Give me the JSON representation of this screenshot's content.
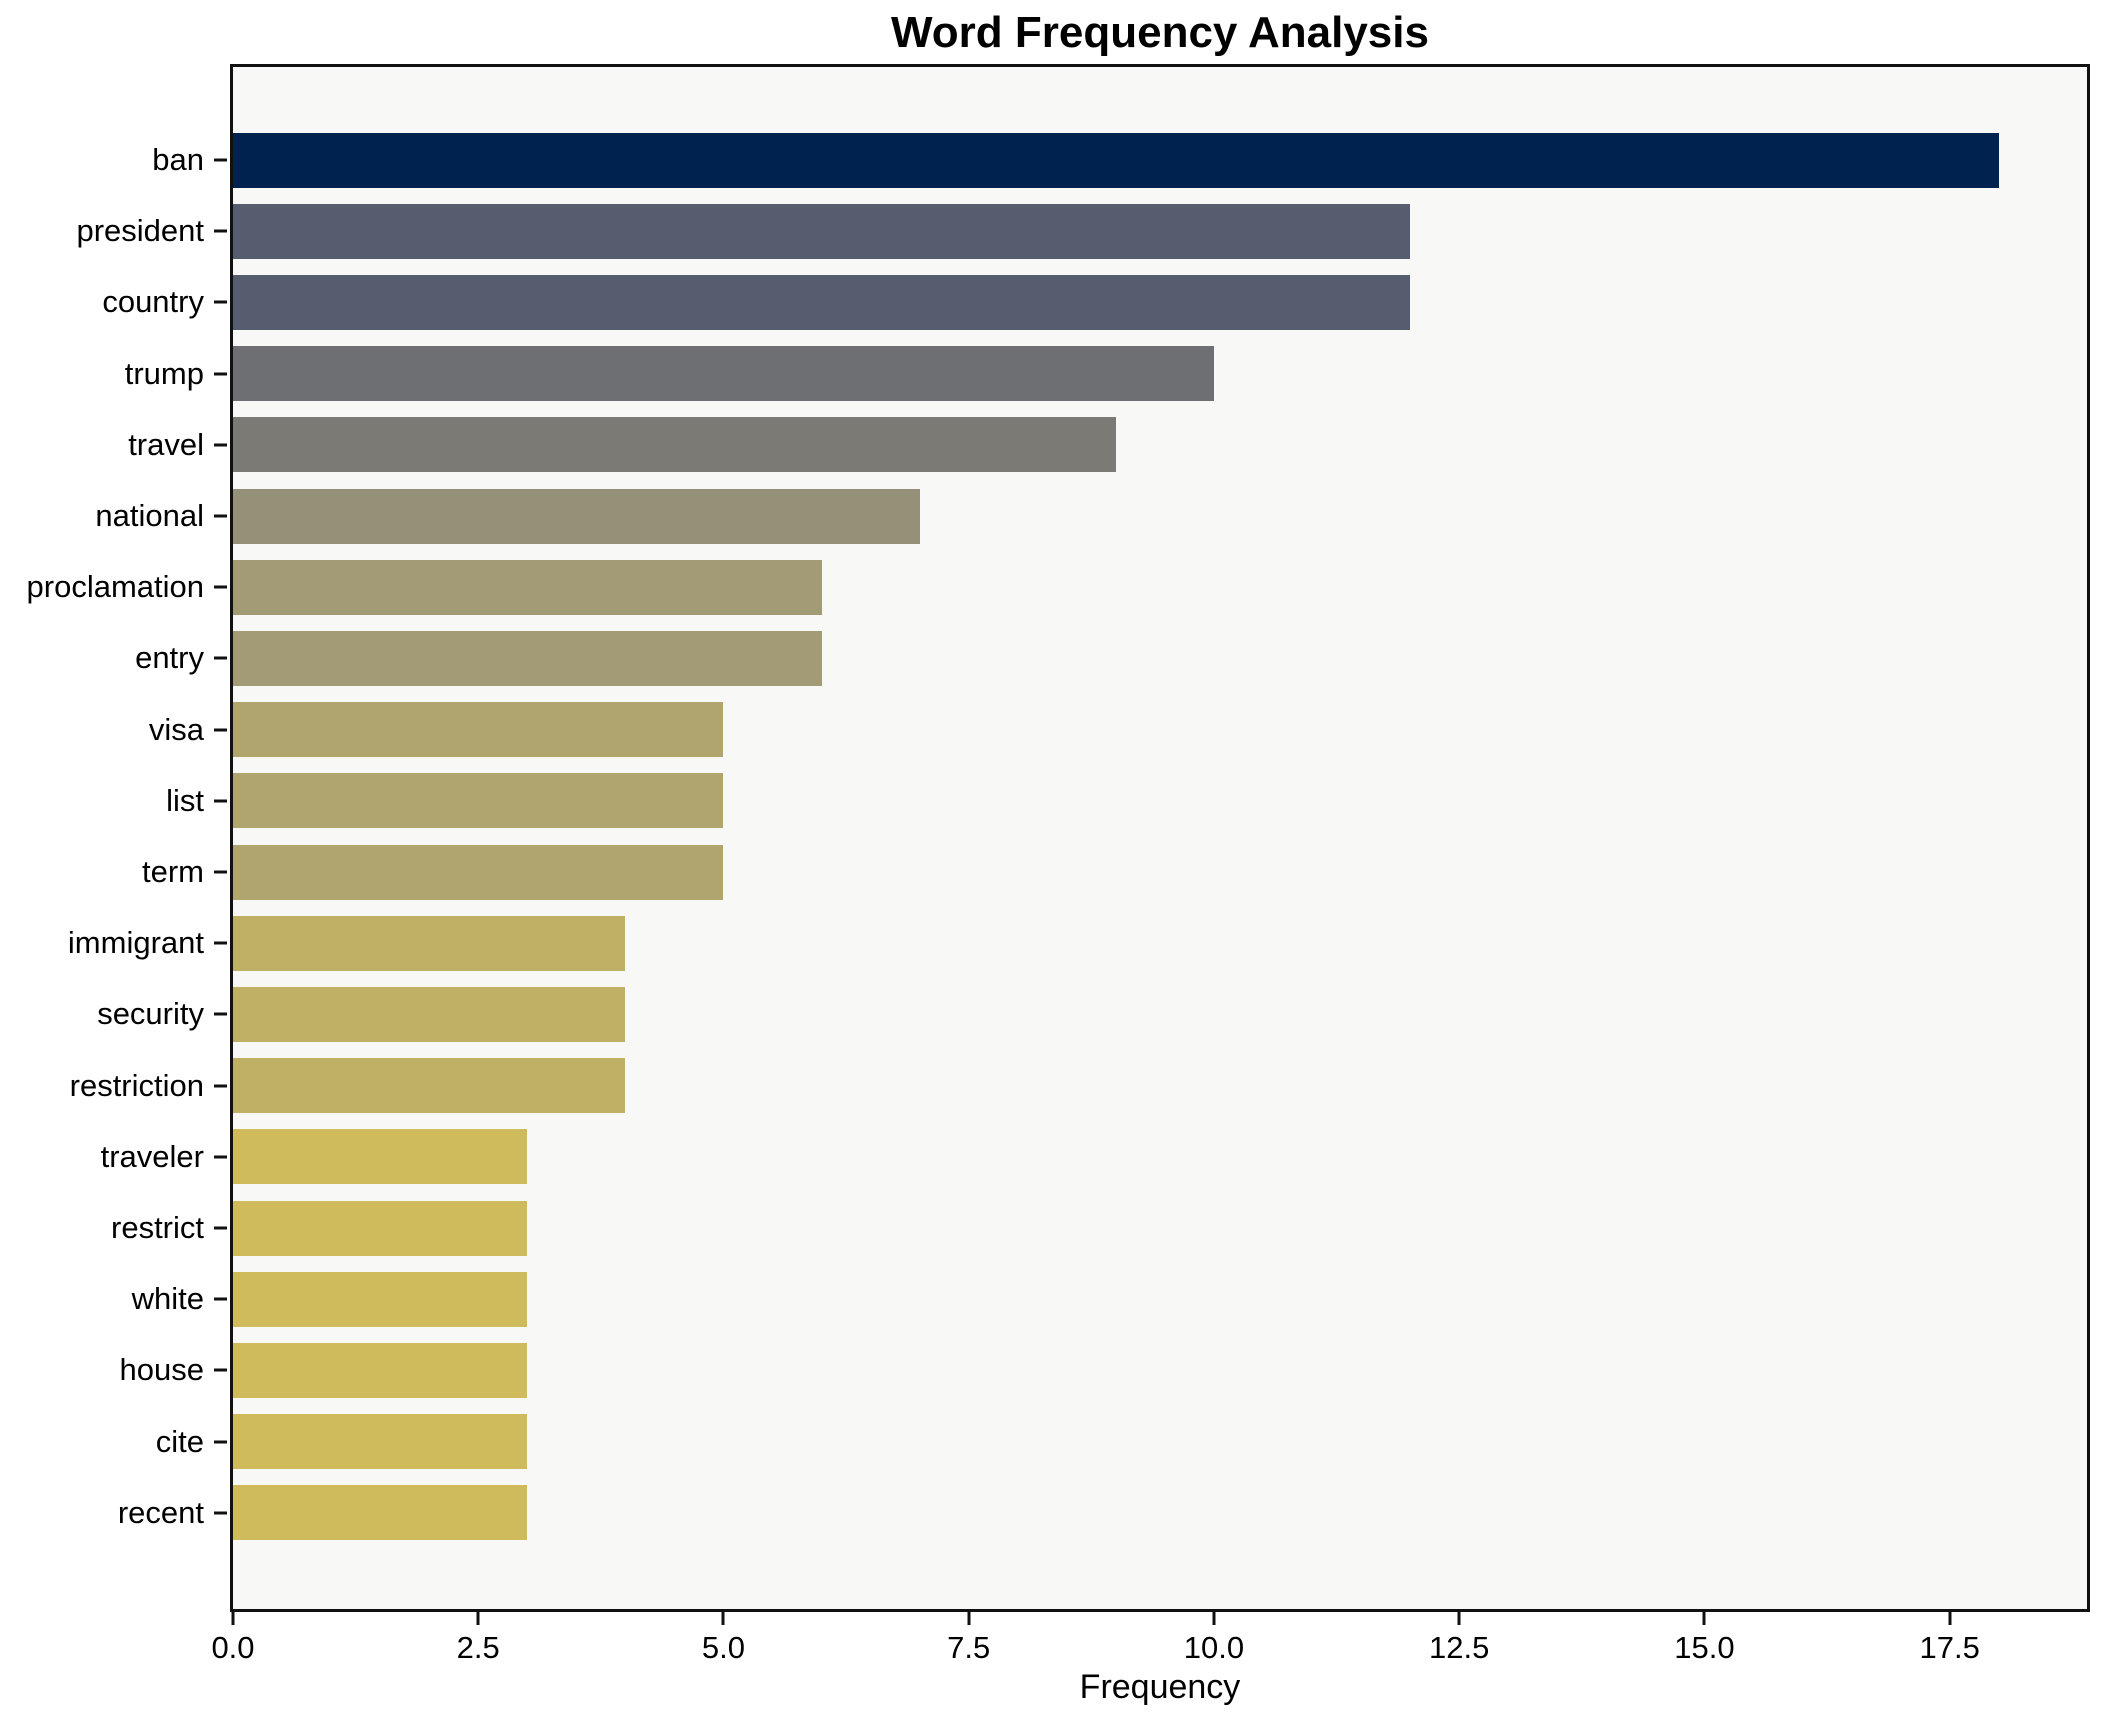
{
  "chart_data": {
    "type": "bar",
    "orientation": "horizontal",
    "title": "Word Frequency Analysis",
    "xlabel": "Frequency",
    "ylabel": "",
    "categories": [
      "ban",
      "president",
      "country",
      "trump",
      "travel",
      "national",
      "proclamation",
      "entry",
      "visa",
      "list",
      "term",
      "immigrant",
      "security",
      "restriction",
      "traveler",
      "restrict",
      "white",
      "house",
      "cite",
      "recent"
    ],
    "values": [
      18,
      12,
      12,
      10,
      9,
      7,
      6,
      6,
      5,
      5,
      5,
      4,
      4,
      4,
      3,
      3,
      3,
      3,
      3,
      3
    ],
    "bar_colors": [
      "#00224e",
      "#565d6e",
      "#565d6e",
      "#6e6f72",
      "#7b7a75",
      "#959078",
      "#a39b76",
      "#a39b76",
      "#b0a56f",
      "#b0a56f",
      "#b0a56f",
      "#c0b066",
      "#c0b066",
      "#c0b066",
      "#d0bb5c",
      "#d0bb5c",
      "#d0bb5c",
      "#d0bb5c",
      "#d0bb5c",
      "#d0bb5c"
    ],
    "xlim": [
      0,
      18.9
    ],
    "x_ticks": [
      0.0,
      2.5,
      5.0,
      7.5,
      10.0,
      12.5,
      15.0,
      17.5
    ],
    "x_tick_labels": [
      "0.0",
      "2.5",
      "5.0",
      "7.5",
      "10.0",
      "12.5",
      "15.0",
      "17.5"
    ],
    "grid": false,
    "legend": null,
    "colormap": "cividis",
    "plot_bg": "#f8f8f7",
    "fig_bg": "#ffffff",
    "spine_color": "#111111"
  }
}
